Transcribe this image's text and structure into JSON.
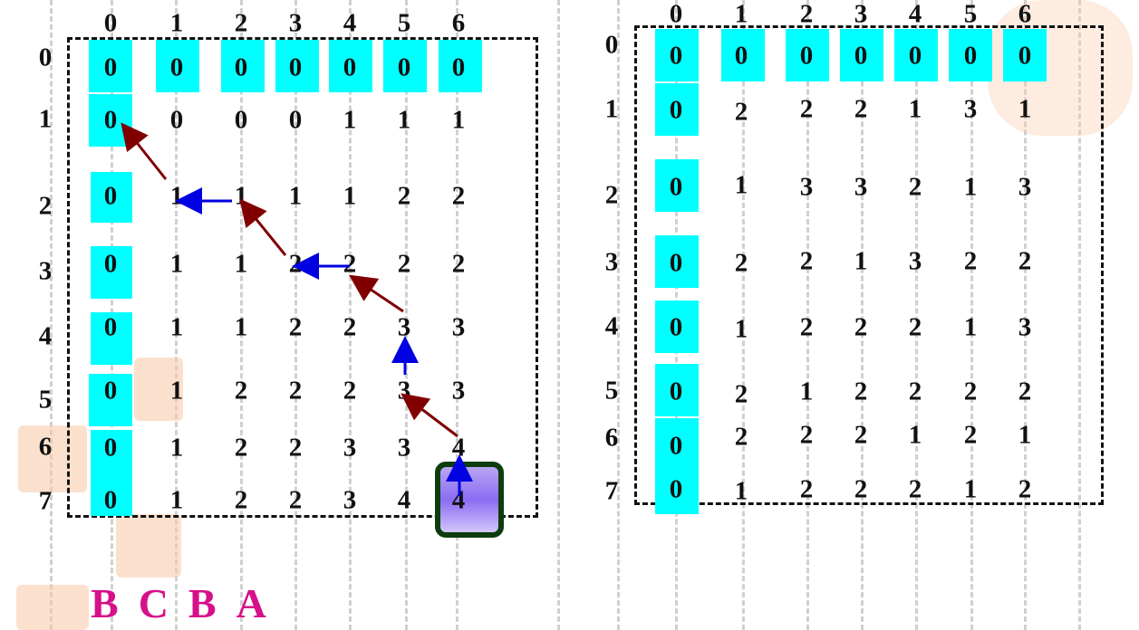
{
  "left_table": {
    "column_headers": [
      "0",
      "1",
      "2",
      "3",
      "4",
      "5",
      "6"
    ],
    "row_headers": [
      "0",
      "1",
      "2",
      "3",
      "4",
      "5",
      "6",
      "7"
    ],
    "rows": [
      [
        "0",
        "0",
        "0",
        "0",
        "0",
        "0",
        "0"
      ],
      [
        "0",
        "0",
        "0",
        "0",
        "1",
        "1",
        "1"
      ],
      [
        "0",
        "1",
        "1",
        "1",
        "1",
        "2",
        "2"
      ],
      [
        "0",
        "1",
        "1",
        "2",
        "2",
        "2",
        "2"
      ],
      [
        "0",
        "1",
        "1",
        "2",
        "2",
        "3",
        "3"
      ],
      [
        "0",
        "1",
        "2",
        "2",
        "2",
        "3",
        "3"
      ],
      [
        "0",
        "1",
        "2",
        "2",
        "3",
        "3",
        "4"
      ],
      [
        "0",
        "1",
        "2",
        "2",
        "3",
        "4",
        "4"
      ]
    ]
  },
  "right_table": {
    "column_headers": [
      "0",
      "1",
      "2",
      "3",
      "4",
      "5",
      "6"
    ],
    "row_headers": [
      "0",
      "1",
      "2",
      "3",
      "4",
      "5",
      "6",
      "7"
    ],
    "rows": [
      [
        "0",
        "0",
        "0",
        "0",
        "0",
        "0",
        "0"
      ],
      [
        "0",
        "2",
        "2",
        "2",
        "1",
        "3",
        "1"
      ],
      [
        "0",
        "1",
        "3",
        "3",
        "2",
        "1",
        "3"
      ],
      [
        "0",
        "2",
        "2",
        "1",
        "3",
        "2",
        "2"
      ],
      [
        "0",
        "1",
        "2",
        "2",
        "2",
        "1",
        "3"
      ],
      [
        "0",
        "2",
        "1",
        "2",
        "2",
        "2",
        "2"
      ],
      [
        "0",
        "2",
        "2",
        "2",
        "1",
        "2",
        "1"
      ],
      [
        "0",
        "1",
        "2",
        "2",
        "2",
        "1",
        "2"
      ]
    ]
  },
  "result_letters": [
    "B",
    "C",
    "B",
    "A"
  ],
  "colors": {
    "cell_fill": "#00ffff",
    "diagonal_arrow": "#800000",
    "horizontal_arrow": "#0000e0",
    "letters": "#d6108a",
    "highlight_border": "#0d3d0d"
  }
}
